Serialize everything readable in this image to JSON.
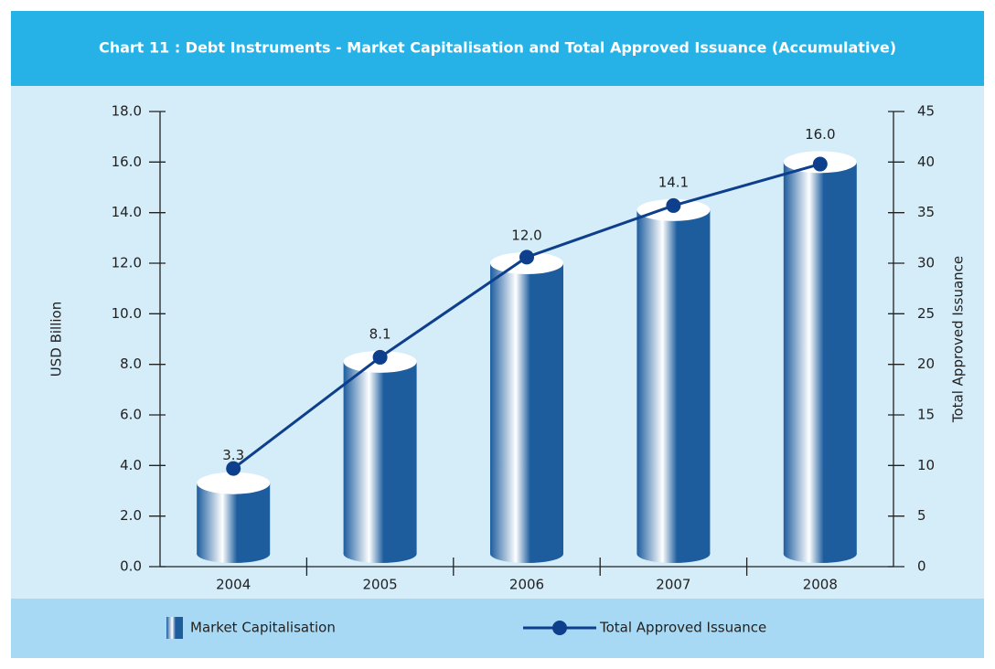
{
  "chart_data": {
    "type": "bar",
    "title": "Chart 11 : Debt Instruments - Market Capitalisation and Total Approved Issuance (Accumulative)",
    "ylabel": "USD Billion",
    "y2label": "Total Approved Issuance",
    "categories": [
      "2004",
      "2005",
      "2006",
      "2007",
      "2008"
    ],
    "series": [
      {
        "name": "Market Capitalisation",
        "type": "bar",
        "color": "#1d5d9e",
        "values": [
          3.3,
          8.1,
          12.0,
          14.1,
          16.0
        ],
        "value_labels": [
          "3.3",
          "8.1",
          "12.0",
          "14.1",
          "16.0"
        ]
      },
      {
        "name": "Total Approved Issuance",
        "type": "line",
        "color": "#0d3f8c",
        "axis": "y2",
        "values": [
          9.7,
          20.7,
          30.6,
          35.7,
          39.8
        ]
      }
    ],
    "ylim": [
      0,
      18
    ],
    "yticks": [
      {
        "value": 0,
        "label": "0.0"
      },
      {
        "value": 2,
        "label": "2.0"
      },
      {
        "value": 4,
        "label": "4.0"
      },
      {
        "value": 6,
        "label": "6.0"
      },
      {
        "value": 8,
        "label": "8.0"
      },
      {
        "value": 10,
        "label": "10.0"
      },
      {
        "value": 12,
        "label": "12.0"
      },
      {
        "value": 14,
        "label": "14.0"
      },
      {
        "value": 16,
        "label": "16.0"
      },
      {
        "value": 18,
        "label": "18.0"
      }
    ],
    "y2lim": [
      0,
      45
    ],
    "y2ticks": [
      0,
      5,
      10,
      15,
      20,
      25,
      30,
      35,
      40,
      45
    ]
  }
}
